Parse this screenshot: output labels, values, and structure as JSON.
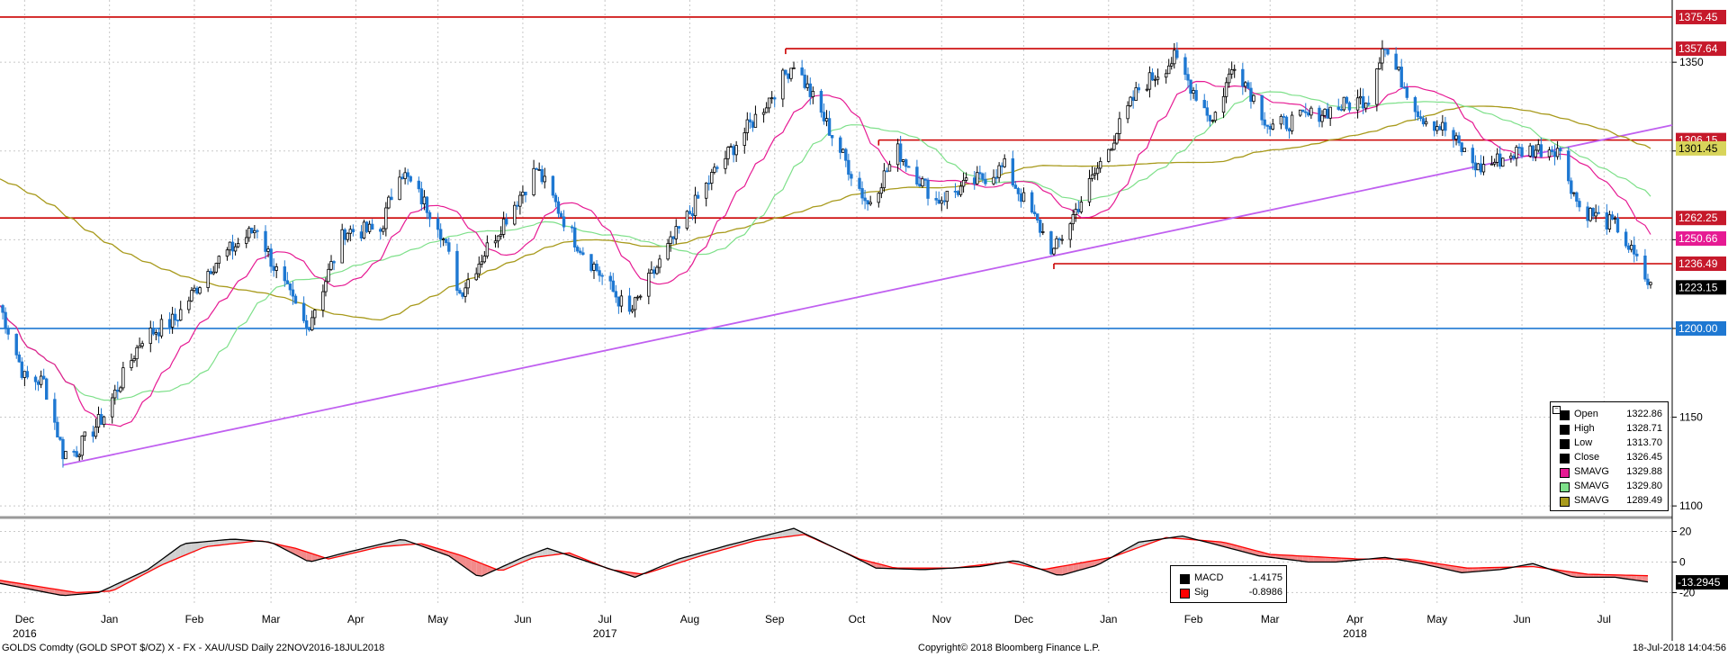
{
  "chart_data": [
    {
      "type": "candlestick",
      "instrument": "XAU/USD",
      "yticks": [
        1100,
        1150,
        1200,
        1250,
        1300,
        1350
      ],
      "ylim": [
        1095,
        1380
      ],
      "xrange": [
        "2016-11-22",
        "2018-07-18"
      ],
      "month_ticks": [
        {
          "label": "Dec",
          "date": "2016-12-01"
        },
        {
          "label": "Jan",
          "date": "2017-01-01"
        },
        {
          "label": "Feb",
          "date": "2017-02-01"
        },
        {
          "label": "Mar",
          "date": "2017-03-01"
        },
        {
          "label": "Apr",
          "date": "2017-04-01"
        },
        {
          "label": "May",
          "date": "2017-05-01"
        },
        {
          "label": "Jun",
          "date": "2017-06-01"
        },
        {
          "label": "Jul",
          "date": "2017-07-01"
        },
        {
          "label": "Aug",
          "date": "2017-08-01"
        },
        {
          "label": "Sep",
          "date": "2017-09-01"
        },
        {
          "label": "Oct",
          "date": "2017-10-01"
        },
        {
          "label": "Nov",
          "date": "2017-11-01"
        },
        {
          "label": "Dec",
          "date": "2017-12-01"
        },
        {
          "label": "Jan",
          "date": "2018-01-01"
        },
        {
          "label": "Feb",
          "date": "2018-02-01"
        },
        {
          "label": "Mar",
          "date": "2018-03-01"
        },
        {
          "label": "Apr",
          "date": "2018-04-01"
        },
        {
          "label": "May",
          "date": "2018-05-01"
        },
        {
          "label": "Jun",
          "date": "2018-06-01"
        },
        {
          "label": "Jul",
          "date": "2018-07-01"
        }
      ],
      "year_labels": [
        {
          "label": "2016",
          "date": "2016-12-01"
        },
        {
          "label": "2017",
          "date": "2017-07-01"
        },
        {
          "label": "2018",
          "date": "2018-04-01"
        }
      ],
      "close_path": [
        [
          "2016-11-22",
          1213
        ],
        [
          "2016-12-01",
          1172
        ],
        [
          "2016-12-08",
          1170
        ],
        [
          "2016-12-15",
          1130
        ],
        [
          "2016-12-20",
          1131
        ],
        [
          "2016-12-30",
          1151
        ],
        [
          "2017-01-13",
          1195
        ],
        [
          "2017-01-25",
          1205
        ],
        [
          "2017-02-07",
          1235
        ],
        [
          "2017-02-24",
          1257
        ],
        [
          "2017-03-02",
          1235
        ],
        [
          "2017-03-14",
          1200
        ],
        [
          "2017-03-28",
          1255
        ],
        [
          "2017-04-10",
          1255
        ],
        [
          "2017-04-17",
          1290
        ],
        [
          "2017-05-01",
          1260
        ],
        [
          "2017-05-09",
          1220
        ],
        [
          "2017-05-24",
          1258
        ],
        [
          "2017-06-06",
          1290
        ],
        [
          "2017-06-20",
          1250
        ],
        [
          "2017-07-10",
          1208
        ],
        [
          "2017-07-24",
          1245
        ],
        [
          "2017-08-10",
          1288
        ],
        [
          "2017-08-28",
          1325
        ],
        [
          "2017-09-08",
          1350
        ],
        [
          "2017-09-20",
          1315
        ],
        [
          "2017-10-05",
          1270
        ],
        [
          "2017-10-16",
          1300
        ],
        [
          "2017-10-30",
          1272
        ],
        [
          "2017-11-24",
          1291
        ],
        [
          "2017-12-12",
          1243
        ],
        [
          "2017-12-28",
          1290
        ],
        [
          "2018-01-12",
          1335
        ],
        [
          "2018-01-25",
          1352
        ],
        [
          "2018-02-08",
          1317
        ],
        [
          "2018-02-16",
          1350
        ],
        [
          "2018-03-01",
          1313
        ],
        [
          "2018-03-16",
          1320
        ],
        [
          "2018-04-06",
          1330
        ],
        [
          "2018-04-11",
          1360
        ],
        [
          "2018-04-25",
          1320
        ],
        [
          "2018-05-04",
          1312
        ],
        [
          "2018-05-16",
          1290
        ],
        [
          "2018-05-31",
          1300
        ],
        [
          "2018-06-14",
          1302
        ],
        [
          "2018-06-22",
          1268
        ],
        [
          "2018-07-06",
          1257
        ],
        [
          "2018-07-18",
          1223
        ]
      ],
      "trendline": [
        [
          "2016-12-15",
          1123
        ],
        [
          "2018-07-18",
          1312
        ]
      ],
      "hlines": [
        {
          "value": 1375.45,
          "label": "1375.45",
          "color": "#cc0000",
          "from": "2016-11-22"
        },
        {
          "value": 1357.64,
          "label": "1357.64",
          "color": "#cc0000",
          "from": "2017-09-05"
        },
        {
          "value": 1306.15,
          "label": "1306.15",
          "color": "#cc0000",
          "from": "2017-10-09"
        },
        {
          "value": 1262.25,
          "label": "1262.25",
          "color": "#cc0000",
          "from": "2016-11-22"
        },
        {
          "value": 1236.49,
          "label": "1236.49",
          "color": "#cc0000",
          "from": "2017-12-12"
        },
        {
          "value": 1200.0,
          "label": "1200.00",
          "color": "#1e78d2",
          "from": "2016-11-22"
        }
      ],
      "price_tags": [
        {
          "value": 1375.45,
          "label": "1375.45",
          "bg": "#c6192b",
          "fg": "#ffffff"
        },
        {
          "value": 1357.64,
          "label": "1357.64",
          "bg": "#c6192b",
          "fg": "#ffffff"
        },
        {
          "value": 1306.15,
          "label": "1306.15",
          "bg": "#c6192b",
          "fg": "#ffffff"
        },
        {
          "value": 1301.45,
          "label": "1301.45",
          "bg": "#d8d45a",
          "fg": "#000000"
        },
        {
          "value": 1262.25,
          "label": "1262.25",
          "bg": "#c6192b",
          "fg": "#ffffff"
        },
        {
          "value": 1250.66,
          "label": "1250.66",
          "bg": "#e61a93",
          "fg": "#ffffff"
        },
        {
          "value": 1236.49,
          "label": "1236.49",
          "bg": "#c6192b",
          "fg": "#ffffff"
        },
        {
          "value": 1223.15,
          "label": "1223.15",
          "bg": "#000000",
          "fg": "#ffffff"
        },
        {
          "value": 1200.0,
          "label": "1200.00",
          "bg": "#1e78d2",
          "fg": "#ffffff"
        }
      ],
      "legend": [
        {
          "name": "Open",
          "value": "1322.86",
          "color": "#000000"
        },
        {
          "name": "High",
          "value": "1328.71",
          "color": "#000000"
        },
        {
          "name": "Low",
          "value": "1313.70",
          "color": "#000000"
        },
        {
          "name": "Close",
          "value": "1326.45",
          "color": "#000000"
        },
        {
          "name": "SMAVG",
          "value": "1329.88",
          "color": "#e61a93"
        },
        {
          "name": "SMAVG",
          "value": "1329.80",
          "color": "#7ee08a"
        },
        {
          "name": "SMAVG",
          "value": "1289.49",
          "color": "#a89a1c"
        }
      ],
      "legend_collapse_mark": "−",
      "colors": {
        "up": "#000000",
        "down": "#1e78d2",
        "sma_fast": "#e61a93",
        "sma_mid": "#7ee08a",
        "sma_slow": "#a89a1c",
        "trend": "#c060f0"
      }
    },
    {
      "type": "macd",
      "yticks": [
        20,
        0,
        -20
      ],
      "ylim": [
        -28,
        25
      ],
      "macd_path": [
        [
          "2016-11-22",
          -14
        ],
        [
          "2016-12-15",
          -22
        ],
        [
          "2016-12-28",
          -20
        ],
        [
          "2017-01-15",
          -5
        ],
        [
          "2017-01-28",
          12
        ],
        [
          "2017-02-15",
          15
        ],
        [
          "2017-03-01",
          13
        ],
        [
          "2017-03-15",
          0
        ],
        [
          "2017-03-28",
          6
        ],
        [
          "2017-04-18",
          15
        ],
        [
          "2017-05-05",
          4
        ],
        [
          "2017-05-16",
          -10
        ],
        [
          "2017-06-01",
          3
        ],
        [
          "2017-06-10",
          9
        ],
        [
          "2017-06-25",
          0
        ],
        [
          "2017-07-12",
          -10
        ],
        [
          "2017-07-28",
          2
        ],
        [
          "2017-08-15",
          11
        ],
        [
          "2017-09-08",
          22
        ],
        [
          "2017-09-28",
          5
        ],
        [
          "2017-10-08",
          -4
        ],
        [
          "2017-10-25",
          -5
        ],
        [
          "2017-11-15",
          -3
        ],
        [
          "2017-11-28",
          1
        ],
        [
          "2017-12-14",
          -9
        ],
        [
          "2017-12-28",
          -2
        ],
        [
          "2018-01-12",
          13
        ],
        [
          "2018-01-28",
          17
        ],
        [
          "2018-02-08",
          12
        ],
        [
          "2018-02-25",
          4
        ],
        [
          "2018-03-15",
          0
        ],
        [
          "2018-03-25",
          0
        ],
        [
          "2018-04-12",
          3
        ],
        [
          "2018-04-25",
          -1
        ],
        [
          "2018-05-10",
          -7
        ],
        [
          "2018-05-24",
          -5
        ],
        [
          "2018-06-05",
          -1
        ],
        [
          "2018-06-20",
          -10
        ],
        [
          "2018-07-05",
          -10
        ],
        [
          "2018-07-18",
          -13.2945
        ]
      ],
      "signal_path": [
        [
          "2016-11-22",
          -12
        ],
        [
          "2016-12-20",
          -20
        ],
        [
          "2017-01-02",
          -19
        ],
        [
          "2017-01-20",
          -2
        ],
        [
          "2017-02-05",
          10
        ],
        [
          "2017-02-25",
          14
        ],
        [
          "2017-03-10",
          9
        ],
        [
          "2017-03-22",
          2
        ],
        [
          "2017-04-10",
          10
        ],
        [
          "2017-04-25",
          12
        ],
        [
          "2017-05-10",
          4
        ],
        [
          "2017-05-24",
          -6
        ],
        [
          "2017-06-05",
          3
        ],
        [
          "2017-06-18",
          6
        ],
        [
          "2017-07-03",
          -5
        ],
        [
          "2017-07-15",
          -8
        ],
        [
          "2017-08-05",
          4
        ],
        [
          "2017-08-25",
          14
        ],
        [
          "2017-09-12",
          18
        ],
        [
          "2017-10-02",
          2
        ],
        [
          "2017-10-15",
          -4
        ],
        [
          "2017-11-05",
          -4
        ],
        [
          "2017-11-25",
          0
        ],
        [
          "2017-12-08",
          -5
        ],
        [
          "2018-01-02",
          3
        ],
        [
          "2018-01-22",
          16
        ],
        [
          "2018-02-12",
          13
        ],
        [
          "2018-03-01",
          5
        ],
        [
          "2018-04-02",
          2
        ],
        [
          "2018-04-20",
          2
        ],
        [
          "2018-05-12",
          -4
        ],
        [
          "2018-06-05",
          -3
        ],
        [
          "2018-06-25",
          -8
        ],
        [
          "2018-07-18",
          -9
        ]
      ],
      "legend": [
        {
          "name": "MACD",
          "value": "-1.4175",
          "color": "#000000"
        },
        {
          "name": "Sig",
          "value": "-0.8986",
          "color": "#ff0000"
        }
      ],
      "last_tag": {
        "value": -13.2945,
        "label": "-13.2945",
        "bg": "#000000",
        "fg": "#ffffff"
      }
    }
  ],
  "footer": {
    "left": "GOLDS Comdty (GOLD SPOT $/OZ) X - FX - XAU/USD  Daily 22NOV2016-18JUL2018",
    "center": "Copyright© 2018 Bloomberg Finance L.P.",
    "right": "18-Jul-2018 14:04:56"
  }
}
